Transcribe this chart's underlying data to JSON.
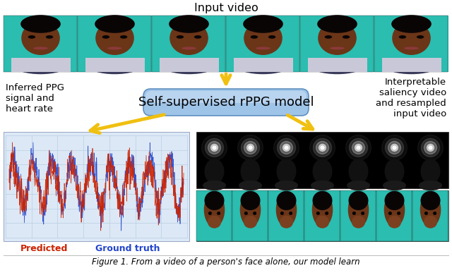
{
  "title_input": "Input video",
  "box_text": "Self-supervised rPPG model",
  "left_label": "Inferred PPG\nsignal and\nheart rate",
  "right_label": "Interpretable\nsaliency video\nand resampled\ninput video",
  "legend_predicted": "Predicted",
  "legend_ground_truth": "Ground truth",
  "fig_caption": "Figure 1. From a video of a person's face alone, our model learn",
  "background_color": "#ffffff",
  "box_fill_top": "#c5d8f0",
  "box_fill_bot": "#8ab0d8",
  "box_color_edge": "#6090c0",
  "arrow_color": "#f0c010",
  "teal_bg": "#2abdb0",
  "face_skin": "#7a4520",
  "face_dark": "#1a0a05",
  "signal_bg_color": "#dce8f5",
  "signal_grid_color": "#b0c8e0",
  "saliency_bg_color": "#000000",
  "predicted_color": "#cc2200",
  "groundtruth_color": "#2244cc",
  "n_faces": 6,
  "n_saliency_frames": 7,
  "n_resample_frames": 7
}
